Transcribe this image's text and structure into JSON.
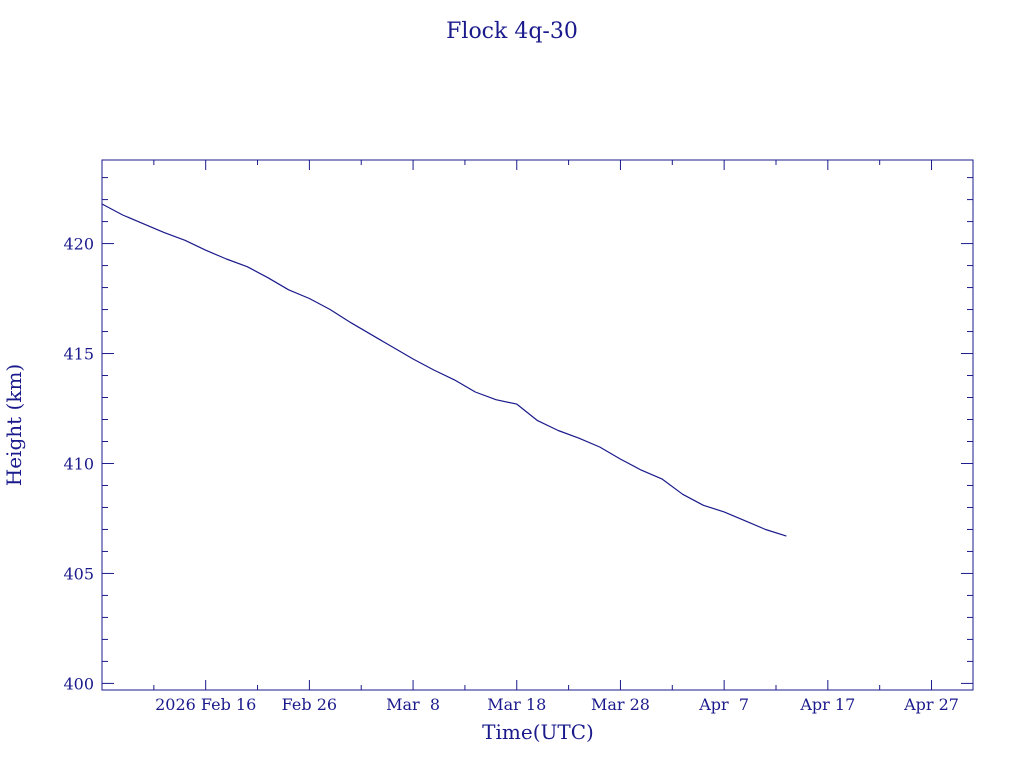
{
  "chart_data": {
    "type": "line",
    "title": "Flock 4q-30",
    "xlabel": "Time(UTC)",
    "ylabel": "Height (km)",
    "xlim": [
      "2026-02-06",
      "2026-05-01"
    ],
    "ylim": [
      399.7,
      423.8
    ],
    "grid": false,
    "x_ticks": [
      {
        "date": "2026-02-16",
        "label": "2026 Feb 16"
      },
      {
        "date": "2026-02-26",
        "label": "Feb 26"
      },
      {
        "date": "2026-03-08",
        "label": "Mar  8"
      },
      {
        "date": "2026-03-18",
        "label": "Mar 18"
      },
      {
        "date": "2026-03-28",
        "label": "Mar 28"
      },
      {
        "date": "2026-04-07",
        "label": "Apr  7"
      },
      {
        "date": "2026-04-17",
        "label": "Apr 17"
      },
      {
        "date": "2026-04-27",
        "label": "Apr 27"
      }
    ],
    "y_ticks": [
      400,
      405,
      410,
      415,
      420
    ],
    "color": "#1a1a8c",
    "series": [
      {
        "x": [
          "2026-02-06",
          "2026-02-08",
          "2026-02-10",
          "2026-02-12",
          "2026-02-14",
          "2026-02-16",
          "2026-02-18",
          "2026-02-20",
          "2026-02-22",
          "2026-02-24",
          "2026-02-26",
          "2026-02-28",
          "2026-03-02",
          "2026-03-04",
          "2026-03-06",
          "2026-03-08",
          "2026-03-10",
          "2026-03-12",
          "2026-03-14",
          "2026-03-16",
          "2026-03-18",
          "2026-03-20",
          "2026-03-22",
          "2026-03-24",
          "2026-03-26",
          "2026-03-28",
          "2026-03-30",
          "2026-04-01",
          "2026-04-03",
          "2026-04-05",
          "2026-04-07",
          "2026-04-09",
          "2026-04-11",
          "2026-04-13"
        ],
        "y": [
          421.8,
          421.3,
          420.9,
          420.5,
          420.15,
          419.7,
          419.3,
          418.95,
          418.45,
          417.9,
          417.5,
          417.0,
          416.4,
          415.85,
          415.3,
          414.75,
          414.25,
          413.8,
          413.25,
          412.9,
          412.7,
          411.95,
          411.5,
          411.15,
          410.75,
          410.2,
          409.7,
          409.3,
          408.6,
          408.1,
          407.8,
          407.4,
          407.0,
          406.7
        ]
      }
    ]
  }
}
